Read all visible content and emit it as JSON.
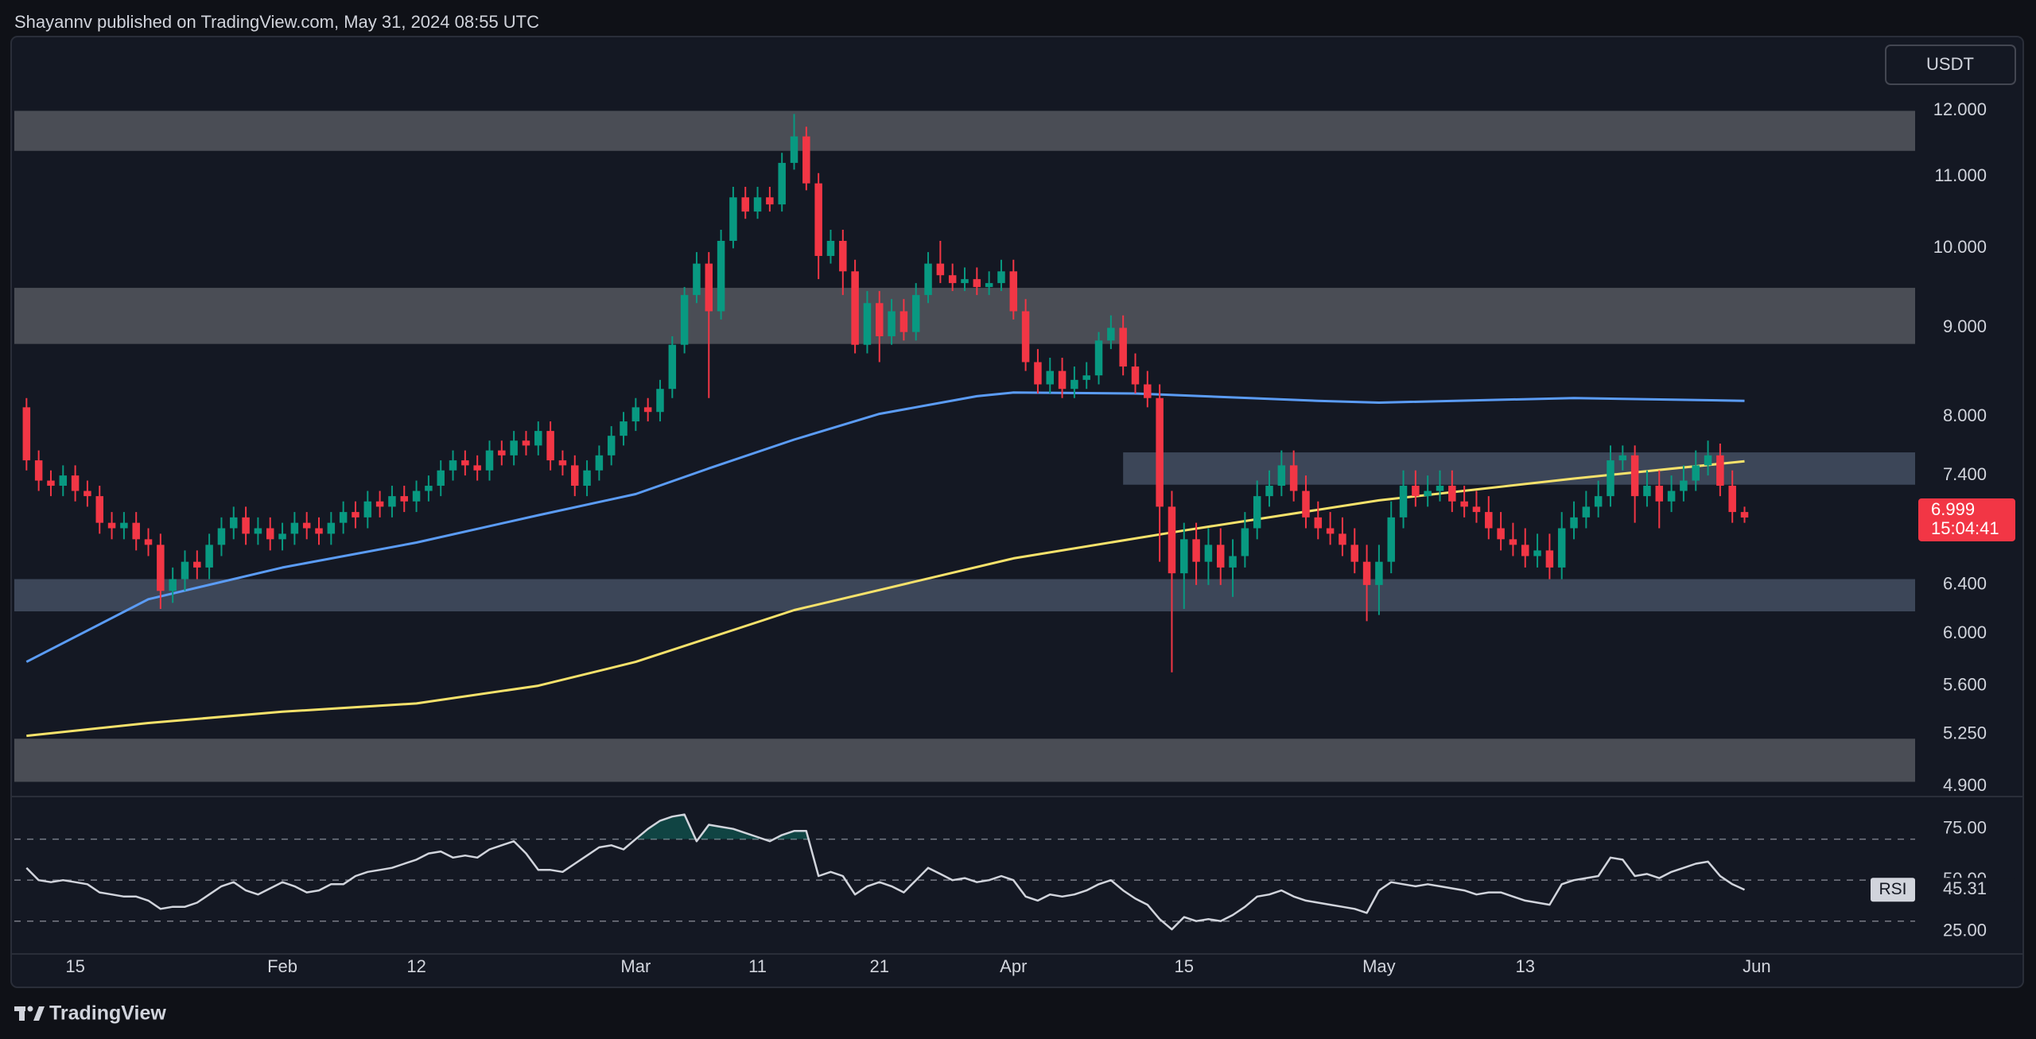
{
  "header": {
    "title": "Shayannv published on TradingView.com, May 31, 2024 08:55 UTC"
  },
  "footer": {
    "brand": "TradingView"
  },
  "chart_data": {
    "type": "candlestick",
    "currency": "USDT",
    "log_scale": true,
    "grid": false,
    "up_color": "#089981",
    "down_color": "#f23645",
    "x": [
      "01-11",
      "01-12",
      "01-13",
      "01-14",
      "01-15",
      "01-16",
      "01-17",
      "01-18",
      "01-19",
      "01-20",
      "01-21",
      "01-22",
      "01-23",
      "01-24",
      "01-25",
      "01-26",
      "01-27",
      "01-28",
      "01-29",
      "01-30",
      "01-31",
      "02-01",
      "02-02",
      "02-03",
      "02-04",
      "02-05",
      "02-06",
      "02-07",
      "02-08",
      "02-09",
      "02-10",
      "02-11",
      "02-12",
      "02-13",
      "02-14",
      "02-15",
      "02-16",
      "02-17",
      "02-18",
      "02-19",
      "02-20",
      "02-21",
      "02-22",
      "02-23",
      "02-24",
      "02-25",
      "02-26",
      "02-27",
      "02-28",
      "02-29",
      "03-01",
      "03-02",
      "03-03",
      "03-04",
      "03-05",
      "03-06",
      "03-07",
      "03-08",
      "03-09",
      "03-10",
      "03-11",
      "03-12",
      "03-13",
      "03-14",
      "03-15",
      "03-16",
      "03-17",
      "03-18",
      "03-19",
      "03-20",
      "03-21",
      "03-22",
      "03-23",
      "03-24",
      "03-25",
      "03-26",
      "03-27",
      "03-28",
      "03-29",
      "03-30",
      "03-31",
      "04-01",
      "04-02",
      "04-03",
      "04-04",
      "04-05",
      "04-06",
      "04-07",
      "04-08",
      "04-09",
      "04-10",
      "04-11",
      "04-12",
      "04-13",
      "04-14",
      "04-15",
      "04-16",
      "04-17",
      "04-18",
      "04-19",
      "04-20",
      "04-21",
      "04-22",
      "04-23",
      "04-24",
      "04-25",
      "04-26",
      "04-27",
      "04-28",
      "04-29",
      "04-30",
      "05-01",
      "05-02",
      "05-03",
      "05-04",
      "05-05",
      "05-06",
      "05-07",
      "05-08",
      "05-09",
      "05-10",
      "05-11",
      "05-12",
      "05-13",
      "05-14",
      "05-15",
      "05-16",
      "05-17",
      "05-18",
      "05-19",
      "05-20",
      "05-21",
      "05-22",
      "05-23",
      "05-24",
      "05-25",
      "05-26",
      "05-27",
      "05-28",
      "05-29",
      "05-30",
      "05-31"
    ],
    "open": [
      8.1,
      7.55,
      7.35,
      7.3,
      7.4,
      7.25,
      7.2,
      6.95,
      6.9,
      6.95,
      6.8,
      6.75,
      6.35,
      6.45,
      6.6,
      6.55,
      6.75,
      6.9,
      7.0,
      6.85,
      6.9,
      6.8,
      6.85,
      6.95,
      6.9,
      6.85,
      6.95,
      7.05,
      7.0,
      7.15,
      7.1,
      7.2,
      7.15,
      7.25,
      7.3,
      7.45,
      7.55,
      7.5,
      7.45,
      7.65,
      7.6,
      7.75,
      7.7,
      7.85,
      7.55,
      7.5,
      7.3,
      7.45,
      7.6,
      7.8,
      7.95,
      8.1,
      8.05,
      8.3,
      8.8,
      9.4,
      9.8,
      9.2,
      10.1,
      10.7,
      10.5,
      10.7,
      10.6,
      11.2,
      11.6,
      10.9,
      9.9,
      10.1,
      9.7,
      8.8,
      9.3,
      8.9,
      9.2,
      8.95,
      9.4,
      9.8,
      9.65,
      9.55,
      9.6,
      9.5,
      9.55,
      9.7,
      9.2,
      8.6,
      8.35,
      8.5,
      8.3,
      8.4,
      8.45,
      8.85,
      9.0,
      8.55,
      8.35,
      8.2,
      7.1,
      6.5,
      6.8,
      6.6,
      6.75,
      6.55,
      6.65,
      6.9,
      7.2,
      7.3,
      7.5,
      7.25,
      7.0,
      6.9,
      6.85,
      6.75,
      6.6,
      6.4,
      6.6,
      7.0,
      7.3,
      7.2,
      7.25,
      7.3,
      7.15,
      7.1,
      7.05,
      6.9,
      6.8,
      6.75,
      6.65,
      6.7,
      6.55,
      6.9,
      7.0,
      7.1,
      7.2,
      7.55,
      7.6,
      7.2,
      7.3,
      7.15,
      7.25,
      7.35,
      7.5,
      7.6,
      7.3,
      7.05
    ],
    "high": [
      8.2,
      7.65,
      7.45,
      7.5,
      7.5,
      7.35,
      7.3,
      7.05,
      7.05,
      7.05,
      6.9,
      6.85,
      6.55,
      6.7,
      6.7,
      6.85,
      7.0,
      7.1,
      7.1,
      7.0,
      7.0,
      6.95,
      7.05,
      7.05,
      7.0,
      7.05,
      7.15,
      7.15,
      7.25,
      7.25,
      7.3,
      7.3,
      7.35,
      7.4,
      7.55,
      7.65,
      7.65,
      7.6,
      7.75,
      7.75,
      7.85,
      7.85,
      7.95,
      7.95,
      7.65,
      7.6,
      7.55,
      7.7,
      7.9,
      8.05,
      8.2,
      8.2,
      8.4,
      8.9,
      9.5,
      9.95,
      9.95,
      10.25,
      10.85,
      10.85,
      10.85,
      10.85,
      11.35,
      11.95,
      11.75,
      11.05,
      10.25,
      10.25,
      9.85,
      9.45,
      9.45,
      9.35,
      9.35,
      9.55,
      9.95,
      10.1,
      9.8,
      9.75,
      9.75,
      9.7,
      9.85,
      9.85,
      9.35,
      8.75,
      8.65,
      8.65,
      8.55,
      8.6,
      8.95,
      9.15,
      9.15,
      8.7,
      8.5,
      8.35,
      7.25,
      6.95,
      6.95,
      6.9,
      6.9,
      6.8,
      7.05,
      7.35,
      7.45,
      7.65,
      7.65,
      7.4,
      7.15,
      7.05,
      7.0,
      6.9,
      6.75,
      6.75,
      7.15,
      7.45,
      7.45,
      7.4,
      7.45,
      7.45,
      7.3,
      7.25,
      7.2,
      7.05,
      6.95,
      6.9,
      6.85,
      6.85,
      7.05,
      7.15,
      7.25,
      7.35,
      7.7,
      7.7,
      7.7,
      7.45,
      7.45,
      7.4,
      7.5,
      7.65,
      7.75,
      7.72,
      7.45,
      7.1
    ],
    "low": [
      7.45,
      7.25,
      7.2,
      7.2,
      7.15,
      7.1,
      6.85,
      6.8,
      6.8,
      6.7,
      6.65,
      6.2,
      6.25,
      6.35,
      6.45,
      6.45,
      6.65,
      6.8,
      6.75,
      6.75,
      6.7,
      6.7,
      6.75,
      6.8,
      6.75,
      6.75,
      6.85,
      6.9,
      6.9,
      7.0,
      7.0,
      7.05,
      7.05,
      7.15,
      7.2,
      7.35,
      7.4,
      7.35,
      7.35,
      7.5,
      7.5,
      7.6,
      7.6,
      7.45,
      7.4,
      7.2,
      7.2,
      7.35,
      7.5,
      7.7,
      7.85,
      7.95,
      7.95,
      8.2,
      8.7,
      9.3,
      8.2,
      9.1,
      10.0,
      10.4,
      10.4,
      10.5,
      10.5,
      11.1,
      10.8,
      9.6,
      9.8,
      9.4,
      8.7,
      8.7,
      8.6,
      8.8,
      8.85,
      8.85,
      9.3,
      9.55,
      9.45,
      9.45,
      9.4,
      9.4,
      9.45,
      9.1,
      8.5,
      8.25,
      8.25,
      8.2,
      8.2,
      8.3,
      8.35,
      8.75,
      8.45,
      8.25,
      8.1,
      6.6,
      5.7,
      6.2,
      6.4,
      6.4,
      6.4,
      6.3,
      6.55,
      6.8,
      7.1,
      7.2,
      7.15,
      6.9,
      6.8,
      6.75,
      6.65,
      6.5,
      6.1,
      6.15,
      6.5,
      6.9,
      7.1,
      7.1,
      7.15,
      7.05,
      7.0,
      6.95,
      6.8,
      6.7,
      6.65,
      6.55,
      6.55,
      6.45,
      6.45,
      6.8,
      6.9,
      7.0,
      7.1,
      7.45,
      6.95,
      7.1,
      6.9,
      7.05,
      7.15,
      7.25,
      7.4,
      7.2,
      6.95,
      6.95
    ],
    "close": [
      7.55,
      7.35,
      7.3,
      7.4,
      7.25,
      7.2,
      6.95,
      6.9,
      6.95,
      6.8,
      6.75,
      6.35,
      6.45,
      6.6,
      6.55,
      6.75,
      6.9,
      7.0,
      6.85,
      6.9,
      6.8,
      6.85,
      6.95,
      6.9,
      6.85,
      6.95,
      7.05,
      7.0,
      7.15,
      7.1,
      7.2,
      7.15,
      7.25,
      7.3,
      7.45,
      7.55,
      7.5,
      7.45,
      7.65,
      7.6,
      7.75,
      7.7,
      7.85,
      7.55,
      7.5,
      7.3,
      7.45,
      7.6,
      7.8,
      7.95,
      8.1,
      8.05,
      8.3,
      8.8,
      9.4,
      9.8,
      9.2,
      10.1,
      10.7,
      10.5,
      10.7,
      10.6,
      11.2,
      11.6,
      10.9,
      9.9,
      10.1,
      9.7,
      8.8,
      9.3,
      8.9,
      9.2,
      8.95,
      9.4,
      9.8,
      9.65,
      9.55,
      9.6,
      9.5,
      9.55,
      9.7,
      9.2,
      8.6,
      8.35,
      8.5,
      8.3,
      8.4,
      8.45,
      8.85,
      9.0,
      8.55,
      8.35,
      8.2,
      7.1,
      6.5,
      6.8,
      6.6,
      6.75,
      6.55,
      6.65,
      6.9,
      7.2,
      7.3,
      7.5,
      7.25,
      7.0,
      6.9,
      6.85,
      6.75,
      6.6,
      6.4,
      6.6,
      7.0,
      7.3,
      7.2,
      7.25,
      7.3,
      7.15,
      7.1,
      7.05,
      6.9,
      6.8,
      6.75,
      6.65,
      6.7,
      6.55,
      6.9,
      7.0,
      7.1,
      7.2,
      7.55,
      7.6,
      7.2,
      7.3,
      7.15,
      7.25,
      7.35,
      7.5,
      7.6,
      7.3,
      7.05,
      6.999
    ],
    "countdown": "15:04:41",
    "xlim": [
      "01-10",
      "06-14"
    ],
    "xticks": [
      {
        "value": "01-15",
        "label": "15"
      },
      {
        "value": "02-01",
        "label": "Feb"
      },
      {
        "value": "02-12",
        "label": "12"
      },
      {
        "value": "03-01",
        "label": "Mar"
      },
      {
        "value": "03-11",
        "label": "11"
      },
      {
        "value": "03-21",
        "label": "21"
      },
      {
        "value": "04-01",
        "label": "Apr"
      },
      {
        "value": "04-15",
        "label": "15"
      },
      {
        "value": "05-01",
        "label": "May"
      },
      {
        "value": "05-13",
        "label": "13"
      },
      {
        "value": "06-01",
        "label": "Jun"
      }
    ],
    "ylim": [
      4.85,
      13.2
    ],
    "yticks": [
      {
        "value": 12,
        "label": "12.000"
      },
      {
        "value": 11,
        "label": "11.000"
      },
      {
        "value": 10,
        "label": "10.000"
      },
      {
        "value": 9,
        "label": "9.000"
      },
      {
        "value": 8,
        "label": "8.000"
      },
      {
        "value": 7.4,
        "label": "7.400"
      },
      {
        "value": 6.4,
        "label": "6.400"
      },
      {
        "value": 6,
        "label": "6.000"
      },
      {
        "value": 5.6,
        "label": "5.600"
      },
      {
        "value": 5.25,
        "label": "5.250"
      },
      {
        "value": 4.9,
        "label": "4.900"
      }
    ],
    "zones": [
      {
        "low": 11.38,
        "high": 12.0,
        "color": "#4a4d55"
      },
      {
        "low": 8.81,
        "high": 9.49,
        "color": "#4a4d55"
      },
      {
        "low": 7.31,
        "high": 7.63,
        "color": "#3c4658",
        "start": "04-10"
      },
      {
        "low": 6.18,
        "high": 6.45,
        "color": "#3c4658"
      },
      {
        "low": 4.93,
        "high": 5.22,
        "color": "#4a4d55"
      }
    ],
    "moving_averages": [
      {
        "color": "#5b9cf6",
        "x": [
          "01-11",
          "01-21",
          "02-01",
          "02-12",
          "02-22",
          "03-01",
          "03-07",
          "03-14",
          "03-21",
          "03-29",
          "04-01",
          "04-11",
          "04-26",
          "05-01",
          "05-17",
          "05-31"
        ],
        "values": [
          5.78,
          6.28,
          6.55,
          6.77,
          7.02,
          7.22,
          7.47,
          7.76,
          8.03,
          8.22,
          8.26,
          8.25,
          8.17,
          8.15,
          8.2,
          8.17
        ]
      },
      {
        "color": "#f7e26b",
        "x": [
          "01-11",
          "01-21",
          "02-01",
          "02-12",
          "02-22",
          "03-01",
          "03-14",
          "04-01",
          "04-15",
          "05-01",
          "05-17",
          "05-31"
        ],
        "values": [
          5.24,
          5.33,
          5.41,
          5.47,
          5.6,
          5.78,
          6.19,
          6.63,
          6.88,
          7.16,
          7.37,
          7.54
        ]
      }
    ],
    "rsi": {
      "name": "RSI",
      "color": "#d1d4dc",
      "overbought_color": "rgba(8,153,129,0.35)",
      "ylim": [
        14,
        90
      ],
      "yticks": [
        {
          "value": 75,
          "label": "75.00"
        },
        {
          "value": 50,
          "label": "50.00"
        },
        {
          "value": 25,
          "label": "25.00"
        }
      ],
      "levels": [
        70,
        50,
        30
      ],
      "values": [
        56,
        50,
        49,
        50,
        49,
        48,
        44,
        43,
        42,
        42,
        40,
        36,
        37,
        37,
        39,
        43,
        47,
        49,
        45,
        43,
        46,
        49,
        47,
        44,
        45,
        48,
        48,
        52,
        54,
        55,
        56,
        58,
        60,
        63,
        64,
        61,
        62,
        61,
        65,
        67,
        69,
        63,
        55,
        55,
        54,
        58,
        62,
        66,
        67,
        65,
        70,
        75,
        79,
        81,
        82,
        69,
        77,
        76,
        75,
        73,
        71,
        69,
        72,
        74,
        74,
        52,
        54,
        52,
        43,
        47,
        49,
        47,
        44,
        50,
        56,
        53,
        50,
        51,
        49,
        50,
        52,
        50,
        42,
        40,
        43,
        42,
        43,
        45,
        48,
        50,
        45,
        41,
        38,
        31,
        26,
        32,
        30,
        31,
        30,
        33,
        37,
        42,
        43,
        45,
        42,
        40,
        39,
        38,
        37,
        36,
        34,
        45,
        49,
        48,
        47,
        48,
        47,
        46,
        45,
        43,
        44,
        44,
        42,
        40,
        39,
        38,
        48,
        50,
        51,
        52,
        61,
        60,
        52,
        53,
        51,
        54,
        56,
        58,
        59,
        52,
        48,
        45.31
      ]
    }
  }
}
